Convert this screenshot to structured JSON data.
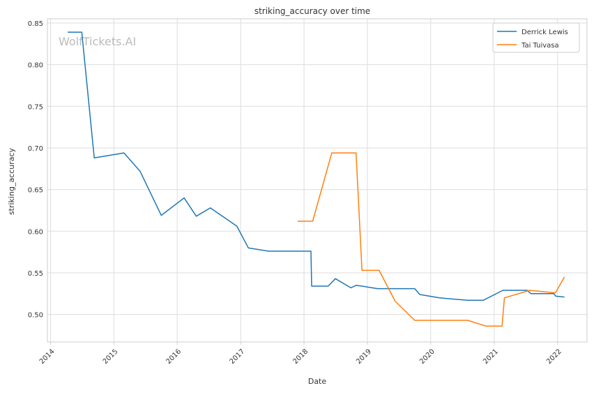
{
  "chart_data": {
    "type": "line",
    "title": "striking_accuracy over time",
    "xlabel": "Date",
    "ylabel": "striking_accuracy",
    "watermark": "WolfTickets.AI",
    "x_range": [
      "2013-12-14",
      "2022-06-20"
    ],
    "ylim": [
      0.467,
      0.855
    ],
    "x_ticks": [
      "2014",
      "2015",
      "2016",
      "2017",
      "2018",
      "2019",
      "2020",
      "2021",
      "2022"
    ],
    "y_ticks": [
      "0.50",
      "0.55",
      "0.60",
      "0.65",
      "0.70",
      "0.75",
      "0.80",
      "0.85"
    ],
    "grid": true,
    "legend_position": "top-right",
    "series": [
      {
        "name": "Derrick Lewis",
        "color": "#1f77b4",
        "points": [
          [
            "2014-04-10",
            0.839
          ],
          [
            "2014-06-30",
            0.839
          ],
          [
            "2014-09-10",
            0.688
          ],
          [
            "2015-02-28",
            0.694
          ],
          [
            "2015-06-01",
            0.672
          ],
          [
            "2015-10-01",
            0.619
          ],
          [
            "2016-02-10",
            0.64
          ],
          [
            "2016-04-20",
            0.618
          ],
          [
            "2016-07-10",
            0.628
          ],
          [
            "2016-12-10",
            0.606
          ],
          [
            "2017-02-14",
            0.58
          ],
          [
            "2017-06-10",
            0.576
          ],
          [
            "2018-02-10",
            0.576
          ],
          [
            "2018-02-14",
            0.534
          ],
          [
            "2018-05-20",
            0.534
          ],
          [
            "2018-07-01",
            0.543
          ],
          [
            "2018-09-28",
            0.532
          ],
          [
            "2018-10-28",
            0.535
          ],
          [
            "2018-12-01",
            0.534
          ],
          [
            "2019-03-01",
            0.531
          ],
          [
            "2019-10-01",
            0.531
          ],
          [
            "2019-10-30",
            0.524
          ],
          [
            "2020-02-20",
            0.52
          ],
          [
            "2020-08-01",
            0.517
          ],
          [
            "2020-10-30",
            0.517
          ],
          [
            "2021-02-20",
            0.529
          ],
          [
            "2021-07-10",
            0.529
          ],
          [
            "2021-08-01",
            0.525
          ],
          [
            "2021-12-10",
            0.525
          ],
          [
            "2021-12-22",
            0.522
          ],
          [
            "2022-02-10",
            0.521
          ]
        ]
      },
      {
        "name": "Tai Tuivasa",
        "color": "#ff7f0e",
        "points": [
          [
            "2017-11-25",
            0.612
          ],
          [
            "2018-02-20",
            0.612
          ],
          [
            "2018-06-10",
            0.694
          ],
          [
            "2018-10-28",
            0.694
          ],
          [
            "2018-12-01",
            0.553
          ],
          [
            "2019-03-10",
            0.553
          ],
          [
            "2019-06-10",
            0.516
          ],
          [
            "2019-10-01",
            0.493
          ],
          [
            "2020-08-01",
            0.493
          ],
          [
            "2020-11-15",
            0.486
          ],
          [
            "2021-02-15",
            0.486
          ],
          [
            "2021-03-01",
            0.52
          ],
          [
            "2021-07-25",
            0.529
          ],
          [
            "2021-12-20",
            0.526
          ],
          [
            "2022-02-10",
            0.545
          ]
        ]
      }
    ]
  }
}
